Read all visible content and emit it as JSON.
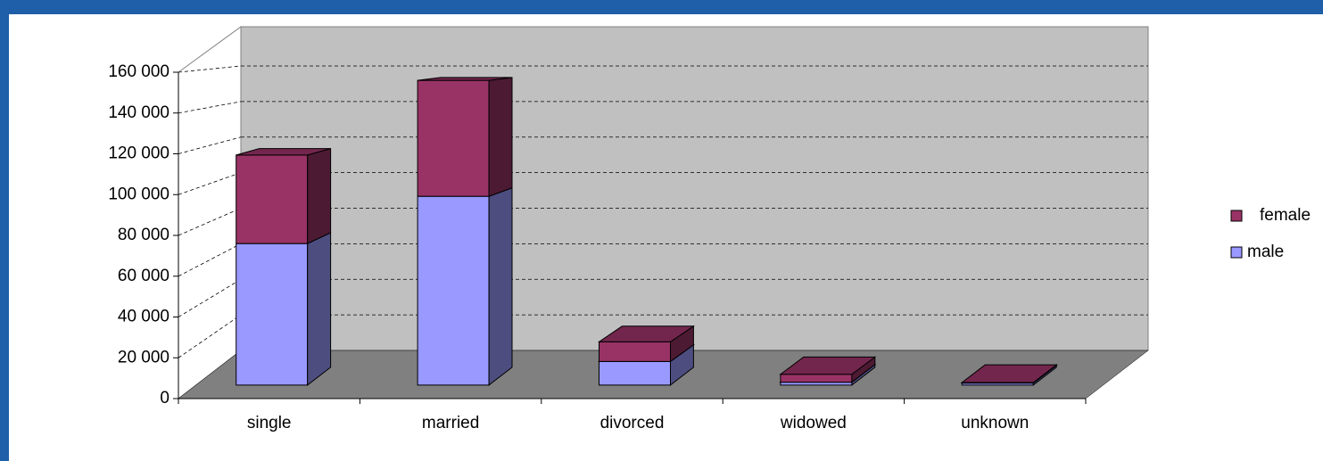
{
  "chart_data": {
    "type": "bar3d_stacked",
    "categories": [
      "single",
      "married",
      "divorced",
      "widowed",
      "unknown"
    ],
    "series": [
      {
        "name": "male",
        "color": "#9999ff",
        "values": [
          72000,
          96000,
          12000,
          1500,
          1000
        ]
      },
      {
        "name": "female",
        "color": "#993366",
        "values": [
          45000,
          59000,
          10000,
          4000,
          300
        ]
      }
    ],
    "ylim": [
      0,
      160000
    ],
    "yticks": [
      0,
      {
        "value": 20000,
        "label": "20 000"
      },
      {
        "value": 40000,
        "label": "40 000"
      },
      {
        "value": 60000,
        "label": "60 000"
      },
      {
        "value": 80000,
        "label": "80 000"
      },
      {
        "value": 100000,
        "label": "100 000"
      },
      {
        "value": 120000,
        "label": "120 000"
      },
      {
        "value": 140000,
        "label": "140 000"
      },
      {
        "value": 160000,
        "label": "160 000"
      }
    ],
    "grid": true,
    "legend": "right"
  }
}
